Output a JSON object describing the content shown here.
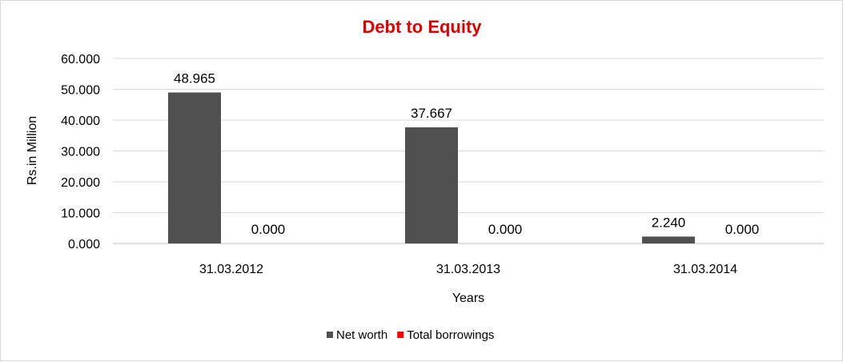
{
  "chart_data": {
    "type": "bar",
    "title": "Debt to Equity",
    "xlabel": "Years",
    "ylabel": "Rs.in Million",
    "categories": [
      "31.03.2012",
      "31.03.2013",
      "31.03.2014"
    ],
    "series": [
      {
        "name": "Net worth",
        "values": [
          48.965,
          37.667,
          2.24
        ],
        "labels": [
          "48.965",
          "37.667",
          "2.240"
        ],
        "color": "#505050"
      },
      {
        "name": "Total borrowings",
        "values": [
          0,
          0,
          0
        ],
        "labels": [
          "0.000",
          "0.000",
          "0.000"
        ],
        "color": "#ff0000"
      }
    ],
    "ylim": [
      0,
      60
    ],
    "yticks": [
      0,
      10,
      20,
      30,
      40,
      50,
      60
    ],
    "ytick_labels": [
      "0.000",
      "10.000",
      "20.000",
      "30.000",
      "40.000",
      "50.000",
      "60.000"
    ],
    "grid": true,
    "legend_position": "bottom",
    "title_color": "#e00000"
  }
}
